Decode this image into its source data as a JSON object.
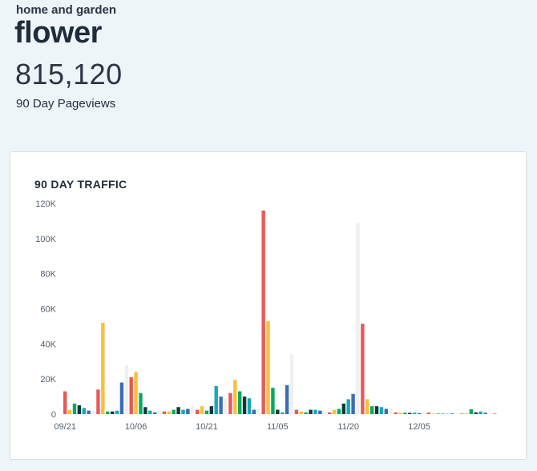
{
  "header": {
    "category": "home and garden",
    "title": "flower",
    "total": "815,120",
    "total_label": "90 Day Pageviews"
  },
  "chart": {
    "title": "90 DAY TRAFFIC"
  },
  "colors": {
    "palette": [
      "#e65a58",
      "#fbbf3a",
      "#0aa760",
      "#0c3a3a",
      "#17a9b5",
      "#3b6cb7",
      "#f0f0f0"
    ]
  },
  "chart_data": {
    "type": "bar",
    "title": "90 DAY TRAFFIC",
    "xlabel": "",
    "ylabel": "",
    "ylim": [
      0,
      120000
    ],
    "yticks": [
      "0",
      "20K",
      "40K",
      "60K",
      "80K",
      "100K",
      "120K"
    ],
    "xticks": [
      {
        "label": "09/21",
        "index": 0
      },
      {
        "label": "10/06",
        "index": 15
      },
      {
        "label": "10/21",
        "index": 30
      },
      {
        "label": "11/05",
        "index": 45
      },
      {
        "label": "11/20",
        "index": 60
      },
      {
        "label": "12/05",
        "index": 75
      }
    ],
    "grid": false,
    "legend": "none",
    "values": [
      13000,
      2500,
      6000,
      5000,
      3500,
      2000,
      2000,
      14000,
      52000,
      1500,
      1500,
      2000,
      18000,
      28000,
      21000,
      24000,
      12000,
      4000,
      2000,
      1000,
      2000,
      1500,
      1500,
      2500,
      4000,
      2500,
      3000,
      4500,
      2500,
      4500,
      2000,
      4500,
      16000,
      10000,
      9000,
      12000,
      19500,
      13000,
      10000,
      9000,
      2500,
      3000,
      116000,
      53000,
      15000,
      2500,
      1000,
      16500,
      34000,
      2500,
      1500,
      1000,
      2500,
      2500,
      2000,
      1500,
      1000,
      2500,
      3000,
      6000,
      8500,
      11500,
      109000,
      51500,
      8500,
      4500,
      4500,
      4000,
      3000,
      3500,
      1000,
      800,
      800,
      700,
      800,
      600,
      1000,
      900,
      300,
      300,
      200,
      200,
      400,
      700,
      300,
      400,
      2800,
      1000,
      1500,
      800,
      500,
      300
    ]
  }
}
